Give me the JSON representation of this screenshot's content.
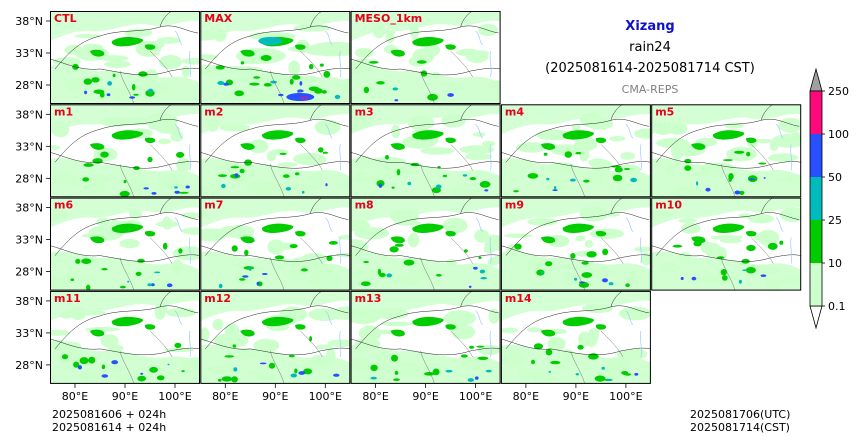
{
  "header": {
    "region": "Xizang",
    "variable": "rain24",
    "period": "(2025081614-2025081714 CST)",
    "model": "CMA-REPS"
  },
  "footer": {
    "init_utc": "2025081606  +  024h",
    "init_cst": "2025081614  +  024h",
    "valid_utc": "2025081706(UTC)",
    "valid_cst": "2025081714(CST)"
  },
  "colors": {
    "panel_label": "#e8001c",
    "region_title": "#1010c8",
    "model_label": "#808080",
    "map_frame": "#000000"
  },
  "chart_data": {
    "type": "heatmap",
    "panels": [
      {
        "label": "CTL",
        "row": 0,
        "col": 0
      },
      {
        "label": "MAX",
        "row": 0,
        "col": 1
      },
      {
        "label": "MESO_1km",
        "row": 0,
        "col": 2
      },
      {
        "label": "m1",
        "row": 1,
        "col": 0
      },
      {
        "label": "m2",
        "row": 1,
        "col": 1
      },
      {
        "label": "m3",
        "row": 1,
        "col": 2
      },
      {
        "label": "m4",
        "row": 1,
        "col": 3
      },
      {
        "label": "m5",
        "row": 1,
        "col": 4
      },
      {
        "label": "m6",
        "row": 2,
        "col": 0
      },
      {
        "label": "m7",
        "row": 2,
        "col": 1
      },
      {
        "label": "m8",
        "row": 2,
        "col": 2
      },
      {
        "label": "m9",
        "row": 2,
        "col": 3
      },
      {
        "label": "m10",
        "row": 2,
        "col": 4
      },
      {
        "label": "m11",
        "row": 3,
        "col": 0
      },
      {
        "label": "m12",
        "row": 3,
        "col": 1
      },
      {
        "label": "m13",
        "row": 3,
        "col": 2
      },
      {
        "label": "m14",
        "row": 3,
        "col": 3
      }
    ],
    "lat_ticks": [
      "38°N",
      "33°N",
      "28°N"
    ],
    "lon_ticks": [
      "80°E",
      "90°E",
      "100°E"
    ],
    "colorbar": {
      "levels": [
        "0.1",
        "10",
        "25",
        "50",
        "100",
        "250"
      ],
      "colors": [
        "#ccffcc",
        "#00cc00",
        "#00bbbb",
        "#2850ff",
        "#ff0a7a"
      ],
      "over_color": "#a0a0a0",
      "under_color": "#ffffff",
      "extend": "both"
    }
  }
}
